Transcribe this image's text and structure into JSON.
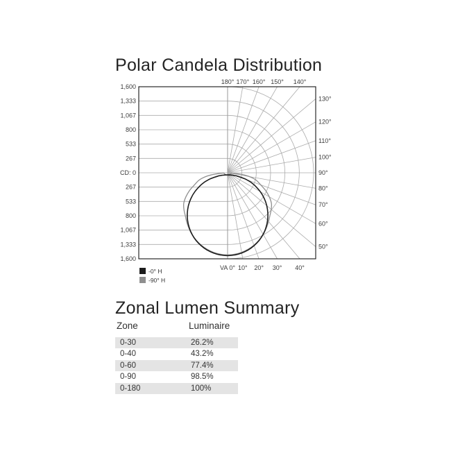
{
  "polar_chart": {
    "title": "Polar Candela Distribution"
  },
  "zonal_table": {
    "title": "Zonal Lumen Summary",
    "columns": [
      "Zone",
      "Luminaire"
    ],
    "rows": [
      {
        "zone": "0-30",
        "luminaire": "26.2%"
      },
      {
        "zone": "0-40",
        "luminaire": "43.2%"
      },
      {
        "zone": "0-60",
        "luminaire": "77.4%"
      },
      {
        "zone": "0-90",
        "luminaire": "98.5%"
      },
      {
        "zone": "0-180",
        "luminaire": "100%"
      }
    ],
    "stripe_color": "#e4e4e4"
  },
  "chart_data": {
    "type": "line",
    "variant": "polar-candela-distribution",
    "title": "Polar Candela Distribution",
    "grid_on": true,
    "radial_axis": {
      "unit": "cd",
      "max_cd": 1600,
      "step_cd": 267,
      "tick_labels": [
        "1,600",
        "1,333",
        "1,067",
        "800",
        "533",
        "267",
        "CD: 0",
        "267",
        "533",
        "800",
        "1,067",
        "1,333",
        "1,600"
      ]
    },
    "angular_axis": {
      "unit": "degrees vertical angle",
      "line_step_deg": 10,
      "top_labels": [
        {
          "deg": 180,
          "text": "180°"
        },
        {
          "deg": 170,
          "text": "170°"
        },
        {
          "deg": 160,
          "text": "160°"
        },
        {
          "deg": 150,
          "text": "150°"
        },
        {
          "deg": 140,
          "text": "140°"
        }
      ],
      "right_labels": [
        {
          "deg": 130,
          "text": "130°"
        },
        {
          "deg": 120,
          "text": "120°"
        },
        {
          "deg": 110,
          "text": "110°"
        },
        {
          "deg": 100,
          "text": "100°"
        },
        {
          "deg": 90,
          "text": "90°"
        },
        {
          "deg": 80,
          "text": "80°"
        },
        {
          "deg": 70,
          "text": "70°"
        },
        {
          "deg": 60,
          "text": "60°"
        },
        {
          "deg": 50,
          "text": "50°"
        }
      ],
      "bottom_labels": [
        {
          "deg": 0,
          "text": "VA 0°"
        },
        {
          "deg": 10,
          "text": "10°"
        },
        {
          "deg": 20,
          "text": "20°"
        },
        {
          "deg": 30,
          "text": "30°"
        },
        {
          "deg": 40,
          "text": "40°"
        }
      ]
    },
    "series": [
      {
        "name": "-0° H",
        "color": "#1c1c1c",
        "outer": [
          [
            0,
            1540
          ],
          [
            5,
            1534
          ],
          [
            10,
            1515
          ],
          [
            15,
            1485
          ],
          [
            20,
            1442
          ],
          [
            25,
            1388
          ],
          [
            30,
            1322
          ],
          [
            35,
            1245
          ],
          [
            40,
            1157
          ],
          [
            45,
            1059
          ],
          [
            50,
            951
          ],
          [
            55,
            832
          ],
          [
            60,
            702
          ],
          [
            65,
            557
          ],
          [
            68,
            462
          ],
          [
            70,
            377
          ],
          [
            71,
            325
          ]
        ],
        "inner": [
          [
            71,
            189
          ],
          [
            70,
            163
          ],
          [
            68,
            136
          ],
          [
            65,
            111
          ],
          [
            60,
            88
          ],
          [
            55,
            74
          ],
          [
            50,
            65
          ],
          [
            45,
            58
          ],
          [
            40,
            53
          ],
          [
            35,
            49
          ],
          [
            30,
            46
          ],
          [
            25,
            45
          ],
          [
            20,
            43
          ],
          [
            15,
            42
          ],
          [
            10,
            41
          ],
          [
            5,
            40
          ],
          [
            0,
            40
          ]
        ]
      },
      {
        "name": "-90° H",
        "color": "#8f8f8f",
        "outer": [
          [
            0,
            1528
          ],
          [
            5,
            1521
          ],
          [
            10,
            1503
          ],
          [
            15,
            1472
          ],
          [
            20,
            1433
          ],
          [
            25,
            1383
          ],
          [
            30,
            1323
          ],
          [
            35,
            1255
          ],
          [
            40,
            1185
          ],
          [
            45,
            1115
          ],
          [
            50,
            1060
          ],
          [
            55,
            995
          ],
          [
            60,
            895
          ],
          [
            65,
            780
          ],
          [
            70,
            655
          ],
          [
            75,
            560
          ],
          [
            78,
            480
          ],
          [
            81,
            380
          ],
          [
            84,
            230
          ],
          [
            86,
            95
          ]
        ],
        "inner": [
          [
            86,
            70
          ],
          [
            82,
            68
          ],
          [
            78,
            65
          ],
          [
            74,
            62
          ],
          [
            70,
            60
          ],
          [
            65,
            58
          ],
          [
            60,
            55
          ],
          [
            55,
            54
          ],
          [
            50,
            52
          ],
          [
            45,
            50
          ],
          [
            40,
            49
          ],
          [
            35,
            47
          ],
          [
            30,
            46
          ],
          [
            25,
            44
          ],
          [
            20,
            43
          ],
          [
            15,
            42
          ],
          [
            10,
            41
          ],
          [
            5,
            41
          ],
          [
            0,
            40
          ]
        ]
      }
    ],
    "colors": {
      "grid": "#ababab",
      "center_axis": "#9a9a9a",
      "border": "#151515"
    }
  }
}
